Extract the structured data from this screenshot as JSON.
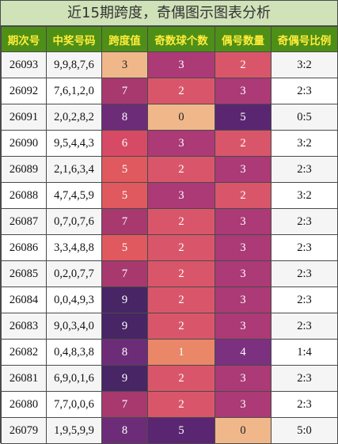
{
  "title": "近15期跨度，奇偶图示图表分析",
  "headers": [
    "期次号",
    "中奖号码",
    "跨度值",
    "奇数球个数",
    "偶号数量",
    "奇偶号比例"
  ],
  "colors": {
    "title_bg": "#cfe2b8",
    "header_bg": "#4e8f17",
    "header_text": "#ffec3a",
    "heat": {
      "0": "#f0b88a",
      "1": "#ea8768",
      "2": "#d9566a",
      "3": "#ab3a76",
      "4": "#7b3080",
      "5": "#5b2671",
      "6": "#d64a66",
      "7": "#a8396f",
      "8": "#6d2c78",
      "9": "#482565"
    },
    "span": {
      "3": "#f0b88a",
      "5": "#e0595e",
      "6": "#d64a66",
      "7": "#a8396f",
      "8": "#6d2c78",
      "9": "#482565"
    }
  },
  "rows": [
    {
      "issue": "26093",
      "numbers": "9,9,8,7,6",
      "span": "3",
      "odd": "3",
      "even": "2",
      "ratio": "3:2"
    },
    {
      "issue": "26092",
      "numbers": "7,6,1,2,0",
      "span": "7",
      "odd": "2",
      "even": "3",
      "ratio": "2:3"
    },
    {
      "issue": "26091",
      "numbers": "2,0,2,8,2",
      "span": "8",
      "odd": "0",
      "even": "5",
      "ratio": "0:5"
    },
    {
      "issue": "26090",
      "numbers": "9,5,4,4,3",
      "span": "6",
      "odd": "3",
      "even": "2",
      "ratio": "3:2"
    },
    {
      "issue": "26089",
      "numbers": "2,1,6,3,4",
      "span": "5",
      "odd": "2",
      "even": "3",
      "ratio": "2:3"
    },
    {
      "issue": "26088",
      "numbers": "4,7,4,5,9",
      "span": "5",
      "odd": "3",
      "even": "2",
      "ratio": "3:2"
    },
    {
      "issue": "26087",
      "numbers": "0,7,0,7,6",
      "span": "7",
      "odd": "2",
      "even": "3",
      "ratio": "2:3"
    },
    {
      "issue": "26086",
      "numbers": "3,3,4,8,8",
      "span": "5",
      "odd": "2",
      "even": "3",
      "ratio": "2:3"
    },
    {
      "issue": "26085",
      "numbers": "0,2,0,7,7",
      "span": "7",
      "odd": "2",
      "even": "3",
      "ratio": "2:3"
    },
    {
      "issue": "26084",
      "numbers": "0,0,4,9,3",
      "span": "9",
      "odd": "2",
      "even": "3",
      "ratio": "2:3"
    },
    {
      "issue": "26083",
      "numbers": "9,0,3,4,0",
      "span": "9",
      "odd": "2",
      "even": "3",
      "ratio": "2:3"
    },
    {
      "issue": "26082",
      "numbers": "0,4,8,3,8",
      "span": "8",
      "odd": "1",
      "even": "4",
      "ratio": "1:4"
    },
    {
      "issue": "26081",
      "numbers": "6,9,0,1,6",
      "span": "9",
      "odd": "2",
      "even": "3",
      "ratio": "2:3"
    },
    {
      "issue": "26080",
      "numbers": "7,7,0,0,6",
      "span": "7",
      "odd": "2",
      "even": "3",
      "ratio": "2:3"
    },
    {
      "issue": "26079",
      "numbers": "1,9,5,9,9",
      "span": "8",
      "odd": "5",
      "even": "0",
      "ratio": "5:0"
    }
  ]
}
